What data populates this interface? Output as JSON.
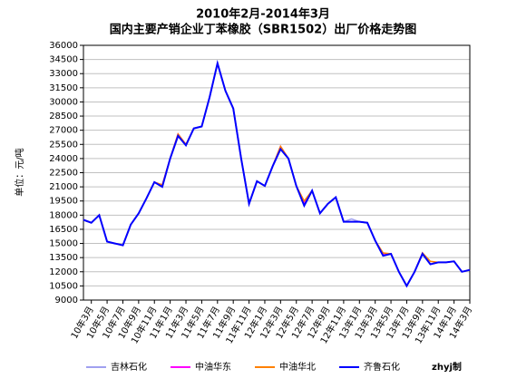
{
  "chart_data": {
    "type": "line",
    "title": "2010年2月-2014年3月",
    "subtitle": "国内主要产销企业丁苯橡胶（SBR1502）出厂价格走势图",
    "y_label": "单位：元/吨",
    "annotation": "zhyj制",
    "categories": [
      null,
      "10年3月",
      null,
      "10年5月",
      null,
      "10年7月",
      null,
      "10年9月",
      null,
      "10年11月",
      null,
      "11年1月",
      null,
      "11年3月",
      null,
      "11年5月",
      null,
      "11年7月",
      null,
      "11年9月",
      null,
      "11年11月",
      null,
      "12年1月",
      null,
      "12年3月",
      null,
      "12年5月",
      null,
      "12年7月",
      null,
      "12年9月",
      null,
      "12年11月",
      null,
      "13年1月",
      null,
      "13年3月",
      null,
      "13年5月",
      null,
      "13年7月",
      null,
      "13年9月",
      null,
      "13年11月",
      null,
      "14年1月",
      null,
      "14年3月"
    ],
    "series": [
      {
        "name": "吉林石化",
        "color": "#a0a0f0",
        "values": [
          17500,
          17200,
          18000,
          15200,
          15000,
          14800,
          17000,
          18200,
          19800,
          21500,
          21000,
          24000,
          26400,
          25400,
          27200,
          27400,
          30500,
          34100,
          31200,
          29300,
          24000,
          19200,
          21600,
          21100,
          23200,
          25000,
          24000,
          21100,
          19000,
          20600,
          18200,
          19200,
          19900,
          17300,
          17600,
          17300,
          17200,
          15300,
          13700,
          13900,
          12000,
          10500,
          12000,
          13900,
          12800,
          13000,
          13000,
          13100,
          12000,
          12200
        ]
      },
      {
        "name": "中油华东",
        "color": "#ff00ff",
        "values": [
          17500,
          17200,
          18000,
          15200,
          15000,
          14800,
          17000,
          18200,
          19800,
          21500,
          21200,
          24000,
          26600,
          25500,
          27200,
          27400,
          30500,
          34100,
          31200,
          29300,
          24000,
          19200,
          21600,
          21100,
          23200,
          25300,
          24000,
          21100,
          19300,
          20600,
          18200,
          19200,
          19900,
          17300,
          17300,
          17300,
          17200,
          15300,
          13900,
          13900,
          12000,
          10500,
          12000,
          14000,
          12800,
          13000,
          13000,
          13100,
          12000,
          12200
        ]
      },
      {
        "name": "中油华北",
        "color": "#ff8000",
        "values": [
          17500,
          17200,
          18000,
          15200,
          15000,
          14800,
          17000,
          18200,
          19800,
          21500,
          21200,
          24000,
          26600,
          25500,
          27200,
          27400,
          30500,
          34100,
          31200,
          29300,
          24000,
          19200,
          21600,
          21100,
          23200,
          25300,
          24000,
          21100,
          19500,
          20600,
          18200,
          19200,
          19900,
          17300,
          17300,
          17300,
          17200,
          15300,
          14000,
          13900,
          12000,
          10500,
          12000,
          14000,
          13100,
          13000,
          13000,
          13100,
          12000,
          12200
        ]
      },
      {
        "name": "齐鲁石化",
        "color": "#0000ff",
        "values": [
          17500,
          17200,
          18000,
          15200,
          15000,
          14800,
          17000,
          18200,
          19800,
          21500,
          21000,
          24000,
          26400,
          25400,
          27200,
          27400,
          30500,
          34100,
          31200,
          29300,
          24000,
          19200,
          21600,
          21100,
          23200,
          25000,
          24000,
          21100,
          19000,
          20600,
          18200,
          19200,
          19900,
          17300,
          17300,
          17300,
          17200,
          15300,
          13700,
          13900,
          12000,
          10500,
          12000,
          13900,
          12800,
          13000,
          13000,
          13100,
          12000,
          12200
        ]
      }
    ],
    "ylim": [
      9000,
      36000
    ],
    "yticks": [
      9000,
      10500,
      12000,
      13500,
      15000,
      16500,
      18000,
      19500,
      21000,
      22500,
      24000,
      25500,
      27000,
      28500,
      30000,
      31500,
      33000,
      34500,
      36000
    ],
    "grid": true
  }
}
